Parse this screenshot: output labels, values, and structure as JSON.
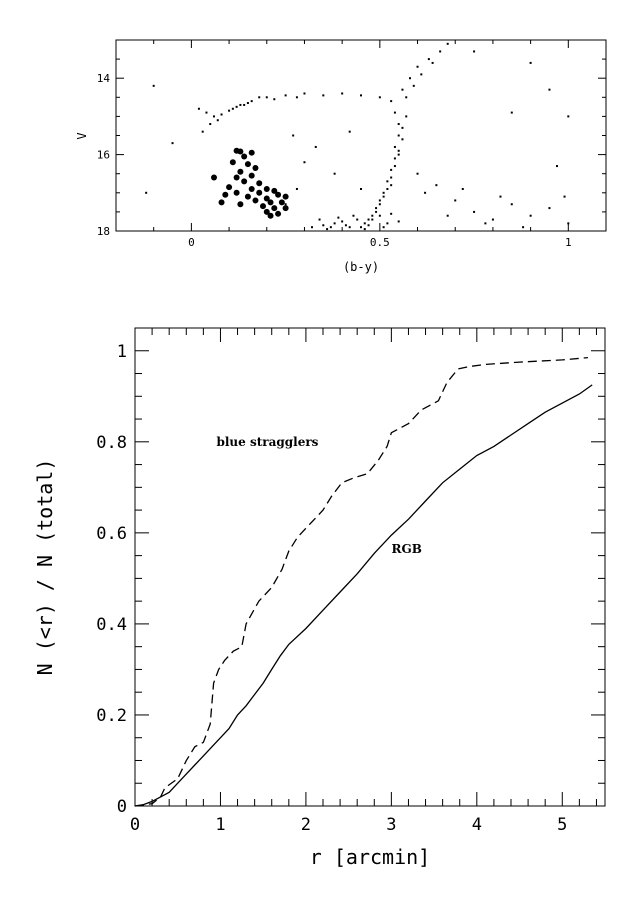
{
  "chart_data": [
    {
      "type": "scatter",
      "xlabel": "(b-y)",
      "ylabel": "V",
      "xlim": [
        -0.2,
        1.1
      ],
      "ylim": [
        18,
        13
      ],
      "x_ticks": [
        0,
        0.5,
        1
      ],
      "x_tick_labels": [
        "0",
        "0.5",
        "1"
      ],
      "y_ticks": [
        14,
        16,
        18
      ],
      "y_tick_labels": [
        "14",
        "16",
        "18"
      ],
      "series": [
        {
          "marker": "dot",
          "points": [
            [
              0.02,
              14.8
            ],
            [
              0.04,
              14.9
            ],
            [
              0.06,
              15.0
            ],
            [
              0.08,
              14.95
            ],
            [
              0.1,
              14.85
            ],
            [
              0.12,
              14.75
            ],
            [
              0.14,
              14.7
            ],
            [
              0.16,
              14.6
            ],
            [
              0.18,
              14.5
            ],
            [
              0.05,
              15.2
            ],
            [
              0.03,
              15.4
            ],
            [
              0.07,
              15.1
            ],
            [
              0.11,
              14.8
            ],
            [
              0.15,
              14.65
            ],
            [
              0.2,
              14.5
            ],
            [
              0.25,
              14.45
            ],
            [
              0.3,
              14.4
            ],
            [
              0.35,
              14.45
            ],
            [
              0.4,
              14.4
            ],
            [
              0.45,
              14.45
            ],
            [
              0.5,
              14.5
            ],
            [
              0.22,
              14.55
            ],
            [
              0.28,
              14.5
            ],
            [
              0.13,
              14.7
            ],
            [
              0.53,
              14.6
            ],
            [
              0.54,
              14.9
            ],
            [
              0.55,
              15.2
            ],
            [
              0.55,
              15.5
            ],
            [
              0.54,
              15.8
            ],
            [
              0.54,
              16.1
            ],
            [
              0.53,
              16.4
            ],
            [
              0.52,
              16.7
            ],
            [
              0.51,
              17.0
            ],
            [
              0.5,
              17.3
            ],
            [
              0.48,
              17.6
            ],
            [
              0.46,
              17.8
            ],
            [
              0.45,
              17.9
            ],
            [
              0.56,
              14.3
            ],
            [
              0.58,
              14.0
            ],
            [
              0.6,
              13.7
            ],
            [
              0.63,
              13.5
            ],
            [
              0.66,
              13.3
            ],
            [
              0.68,
              13.1
            ],
            [
              0.57,
              15.0
            ],
            [
              0.56,
              15.6
            ],
            [
              0.55,
              16.0
            ],
            [
              0.53,
              16.6
            ],
            [
              0.52,
              16.9
            ],
            [
              0.5,
              17.2
            ],
            [
              0.49,
              17.5
            ],
            [
              0.47,
              17.7
            ],
            [
              0.59,
              14.2
            ],
            [
              0.61,
              13.9
            ],
            [
              0.64,
              13.6
            ],
            [
              0.57,
              14.5
            ],
            [
              0.56,
              15.3
            ],
            [
              0.55,
              15.9
            ],
            [
              0.54,
              16.3
            ],
            [
              0.53,
              16.8
            ],
            [
              0.51,
              17.1
            ],
            [
              0.49,
              17.4
            ],
            [
              0.32,
              17.9
            ],
            [
              0.35,
              17.85
            ],
            [
              0.38,
              17.8
            ],
            [
              0.4,
              17.75
            ],
            [
              0.42,
              17.9
            ],
            [
              0.44,
              17.7
            ],
            [
              0.47,
              17.85
            ],
            [
              0.5,
              17.6
            ],
            [
              0.52,
              17.8
            ],
            [
              0.36,
              17.95
            ],
            [
              0.39,
              17.65
            ],
            [
              0.41,
              17.85
            ],
            [
              0.43,
              17.6
            ],
            [
              0.46,
              17.95
            ],
            [
              0.48,
              17.7
            ],
            [
              0.51,
              17.9
            ],
            [
              0.53,
              17.55
            ],
            [
              0.55,
              17.75
            ],
            [
              0.34,
              17.7
            ],
            [
              0.37,
              17.9
            ],
            [
              0.6,
              16.5
            ],
            [
              0.65,
              16.8
            ],
            [
              0.7,
              17.2
            ],
            [
              0.75,
              17.5
            ],
            [
              0.8,
              17.7
            ],
            [
              0.85,
              17.3
            ],
            [
              0.9,
              17.6
            ],
            [
              0.95,
              17.4
            ],
            [
              1.0,
              17.8
            ],
            [
              0.62,
              17.0
            ],
            [
              0.68,
              17.6
            ],
            [
              0.72,
              16.9
            ],
            [
              0.78,
              17.8
            ],
            [
              0.82,
              17.1
            ],
            [
              0.88,
              17.9
            ],
            [
              0.3,
              16.2
            ],
            [
              0.28,
              16.9
            ],
            [
              0.25,
              17.3
            ],
            [
              0.33,
              15.8
            ],
            [
              0.38,
              16.5
            ],
            [
              0.42,
              15.4
            ],
            [
              0.45,
              16.9
            ],
            [
              0.27,
              15.5
            ],
            [
              -0.1,
              14.2
            ],
            [
              -0.05,
              15.7
            ],
            [
              -0.12,
              17.0
            ],
            [
              0.9,
              13.6
            ],
            [
              0.95,
              14.3
            ],
            [
              1.0,
              15.0
            ],
            [
              0.75,
              13.3
            ],
            [
              0.85,
              14.9
            ],
            [
              0.97,
              16.3
            ],
            [
              0.99,
              17.1
            ]
          ]
        },
        {
          "name": "blue stragglers",
          "marker": "filled-circle",
          "points": [
            [
              0.12,
              15.9
            ],
            [
              0.13,
              15.92
            ],
            [
              0.16,
              15.95
            ],
            [
              0.14,
              16.05
            ],
            [
              0.11,
              16.2
            ],
            [
              0.15,
              16.25
            ],
            [
              0.17,
              16.35
            ],
            [
              0.13,
              16.45
            ],
            [
              0.16,
              16.55
            ],
            [
              0.12,
              16.6
            ],
            [
              0.06,
              16.6
            ],
            [
              0.14,
              16.7
            ],
            [
              0.18,
              16.75
            ],
            [
              0.1,
              16.85
            ],
            [
              0.16,
              16.9
            ],
            [
              0.2,
              16.9
            ],
            [
              0.12,
              17.0
            ],
            [
              0.18,
              17.0
            ],
            [
              0.22,
              16.95
            ],
            [
              0.09,
              17.05
            ],
            [
              0.15,
              17.1
            ],
            [
              0.2,
              17.15
            ],
            [
              0.23,
              17.05
            ],
            [
              0.25,
              17.1
            ],
            [
              0.17,
              17.2
            ],
            [
              0.21,
              17.25
            ],
            [
              0.24,
              17.25
            ],
            [
              0.19,
              17.35
            ],
            [
              0.22,
              17.4
            ],
            [
              0.25,
              17.4
            ],
            [
              0.2,
              17.5
            ],
            [
              0.23,
              17.55
            ],
            [
              0.21,
              17.6
            ],
            [
              0.08,
              17.25
            ],
            [
              0.13,
              17.3
            ]
          ]
        }
      ]
    },
    {
      "type": "line",
      "xlabel": "r [arcmin]",
      "ylabel": "N (<r) / N (total)",
      "xlim": [
        0,
        5.5
      ],
      "ylim": [
        0,
        1.05
      ],
      "x_ticks": [
        0,
        1,
        2,
        3,
        4,
        5
      ],
      "x_tick_labels": [
        "0",
        "1",
        "2",
        "3",
        "4",
        "5"
      ],
      "y_ticks": [
        0,
        0.2,
        0.4,
        0.6,
        0.8,
        1
      ],
      "y_tick_labels": [
        "0",
        "0.2",
        "0.4",
        "0.6",
        "0.8",
        "1"
      ],
      "annotations": [
        {
          "text": "blue stragglers",
          "x": 1.55,
          "y": 0.8
        },
        {
          "text": "RGB",
          "x": 3.18,
          "y": 0.565
        }
      ],
      "series": [
        {
          "name": "blue stragglers",
          "style": "dashed",
          "points": [
            [
              0,
              0
            ],
            [
              0.2,
              0.005
            ],
            [
              0.3,
              0.02
            ],
            [
              0.35,
              0.04
            ],
            [
              0.5,
              0.06
            ],
            [
              0.6,
              0.1
            ],
            [
              0.7,
              0.13
            ],
            [
              0.8,
              0.14
            ],
            [
              0.88,
              0.18
            ],
            [
              0.92,
              0.27
            ],
            [
              0.98,
              0.3
            ],
            [
              1.05,
              0.32
            ],
            [
              1.15,
              0.34
            ],
            [
              1.25,
              0.35
            ],
            [
              1.3,
              0.4
            ],
            [
              1.45,
              0.45
            ],
            [
              1.6,
              0.48
            ],
            [
              1.72,
              0.52
            ],
            [
              1.8,
              0.56
            ],
            [
              1.9,
              0.59
            ],
            [
              2.0,
              0.61
            ],
            [
              2.1,
              0.63
            ],
            [
              2.2,
              0.65
            ],
            [
              2.3,
              0.68
            ],
            [
              2.42,
              0.71
            ],
            [
              2.55,
              0.72
            ],
            [
              2.72,
              0.73
            ],
            [
              2.85,
              0.76
            ],
            [
              2.95,
              0.79
            ],
            [
              3.0,
              0.82
            ],
            [
              3.1,
              0.83
            ],
            [
              3.2,
              0.84
            ],
            [
              3.35,
              0.87
            ],
            [
              3.55,
              0.89
            ],
            [
              3.65,
              0.93
            ],
            [
              3.78,
              0.96
            ],
            [
              3.9,
              0.965
            ],
            [
              4.1,
              0.97
            ],
            [
              4.5,
              0.975
            ],
            [
              5.0,
              0.98
            ],
            [
              5.3,
              0.985
            ]
          ]
        },
        {
          "name": "RGB",
          "style": "solid",
          "points": [
            [
              0,
              0
            ],
            [
              0.1,
              0.003
            ],
            [
              0.2,
              0.01
            ],
            [
              0.3,
              0.02
            ],
            [
              0.4,
              0.03
            ],
            [
              0.5,
              0.05
            ],
            [
              0.6,
              0.07
            ],
            [
              0.7,
              0.09
            ],
            [
              0.8,
              0.11
            ],
            [
              0.9,
              0.13
            ],
            [
              1.0,
              0.15
            ],
            [
              1.1,
              0.17
            ],
            [
              1.2,
              0.2
            ],
            [
              1.3,
              0.22
            ],
            [
              1.4,
              0.245
            ],
            [
              1.5,
              0.27
            ],
            [
              1.6,
              0.3
            ],
            [
              1.7,
              0.33
            ],
            [
              1.8,
              0.355
            ],
            [
              2.0,
              0.39
            ],
            [
              2.2,
              0.43
            ],
            [
              2.4,
              0.47
            ],
            [
              2.6,
              0.51
            ],
            [
              2.8,
              0.555
            ],
            [
              3.0,
              0.595
            ],
            [
              3.2,
              0.63
            ],
            [
              3.4,
              0.67
            ],
            [
              3.6,
              0.71
            ],
            [
              3.8,
              0.74
            ],
            [
              4.0,
              0.77
            ],
            [
              4.2,
              0.79
            ],
            [
              4.4,
              0.815
            ],
            [
              4.6,
              0.84
            ],
            [
              4.8,
              0.865
            ],
            [
              5.0,
              0.885
            ],
            [
              5.2,
              0.905
            ],
            [
              5.35,
              0.925
            ]
          ]
        }
      ]
    }
  ]
}
